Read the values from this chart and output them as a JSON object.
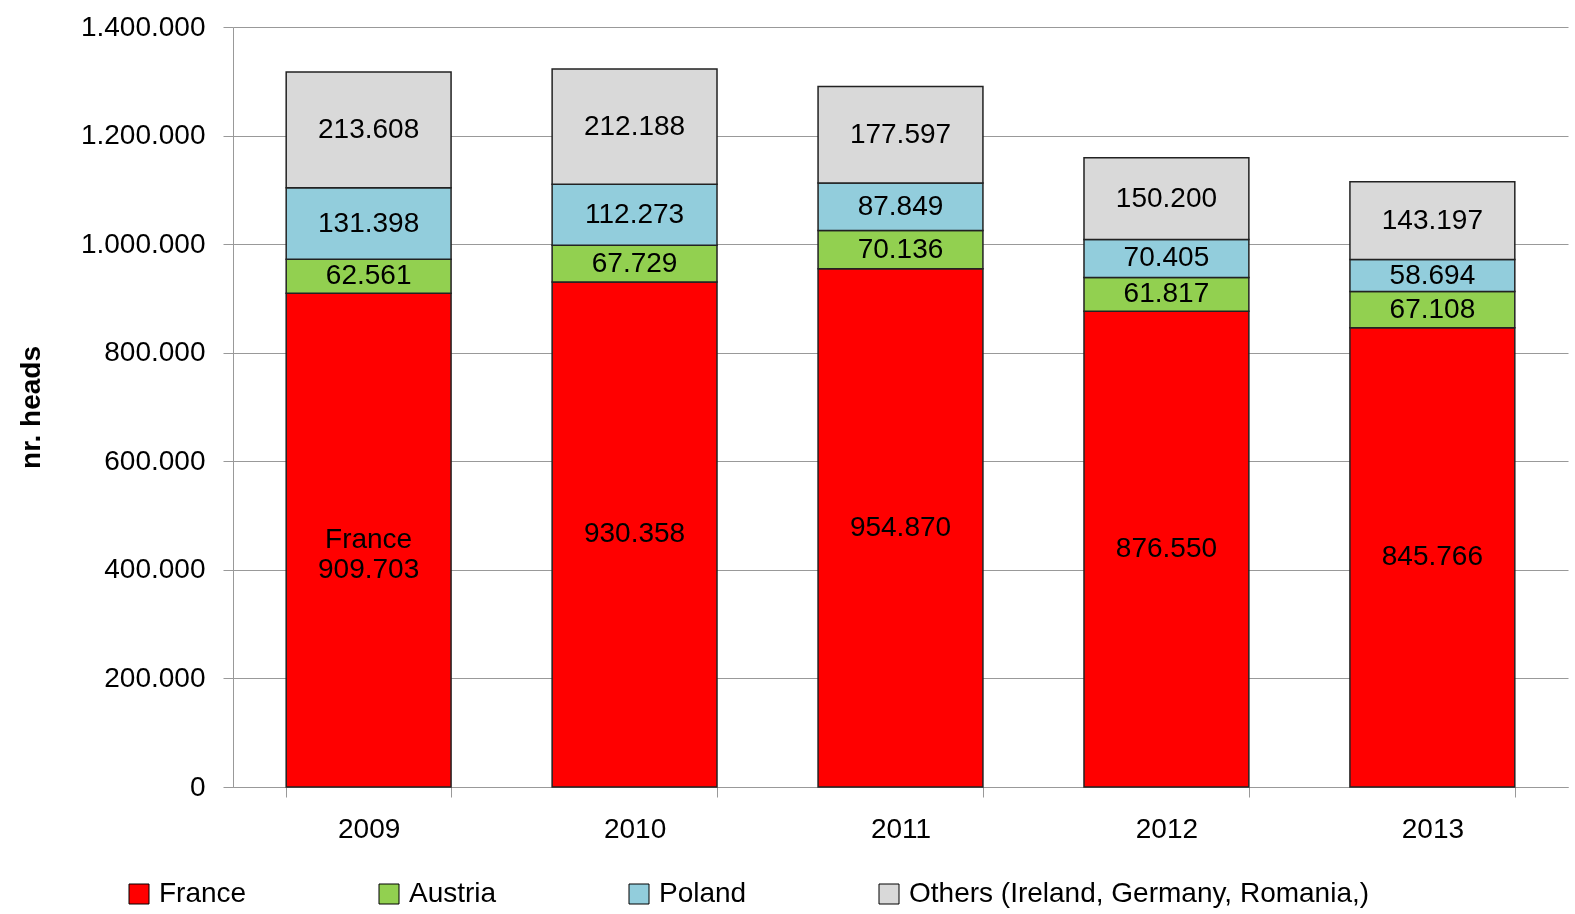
{
  "chart_data": {
    "type": "bar",
    "stacked": true,
    "ylabel": "nr. heads",
    "categories": [
      "2009",
      "2010",
      "2011",
      "2012",
      "2013"
    ],
    "series": [
      {
        "name": "France",
        "color": "#ff0000",
        "values": [
          909703,
          930358,
          954870,
          876550,
          845766
        ],
        "value_labels": [
          "France\n909.703",
          "930.358",
          "954.870",
          "876.550",
          "845.766"
        ]
      },
      {
        "name": "Austria",
        "color": "#92d050",
        "values": [
          62561,
          67729,
          70136,
          61817,
          67108
        ],
        "value_labels": [
          "62.561",
          "67.729",
          "70.136",
          "61.817",
          "67.108"
        ]
      },
      {
        "name": "Poland",
        "color": "#92cddc",
        "values": [
          131398,
          112273,
          87849,
          70405,
          58694
        ],
        "value_labels": [
          "131.398",
          "112.273",
          "87.849",
          "70.405",
          "58.694"
        ]
      },
      {
        "name": "Others (Ireland, Germany, Romania,)",
        "color": "#d9d9d9",
        "values": [
          213608,
          212188,
          177597,
          150200,
          143197
        ],
        "value_labels": [
          "213.608",
          "212.188",
          "177.597",
          "150.200",
          "143.197"
        ]
      }
    ],
    "ylim": [
      0,
      1400000
    ],
    "yticks": [
      0,
      {
        "value": 200000,
        "label": "200.000"
      },
      {
        "value": 400000,
        "label": "400.000"
      },
      {
        "value": 600000,
        "label": "600.000"
      },
      {
        "value": 800000,
        "label": "800.000"
      },
      {
        "value": 1000000,
        "label": "1.000.000"
      },
      {
        "value": 1200000,
        "label": "1.200.000"
      },
      {
        "value": 1400000,
        "label": "1.400.000"
      }
    ],
    "grid": "y",
    "legend": "bottom"
  }
}
